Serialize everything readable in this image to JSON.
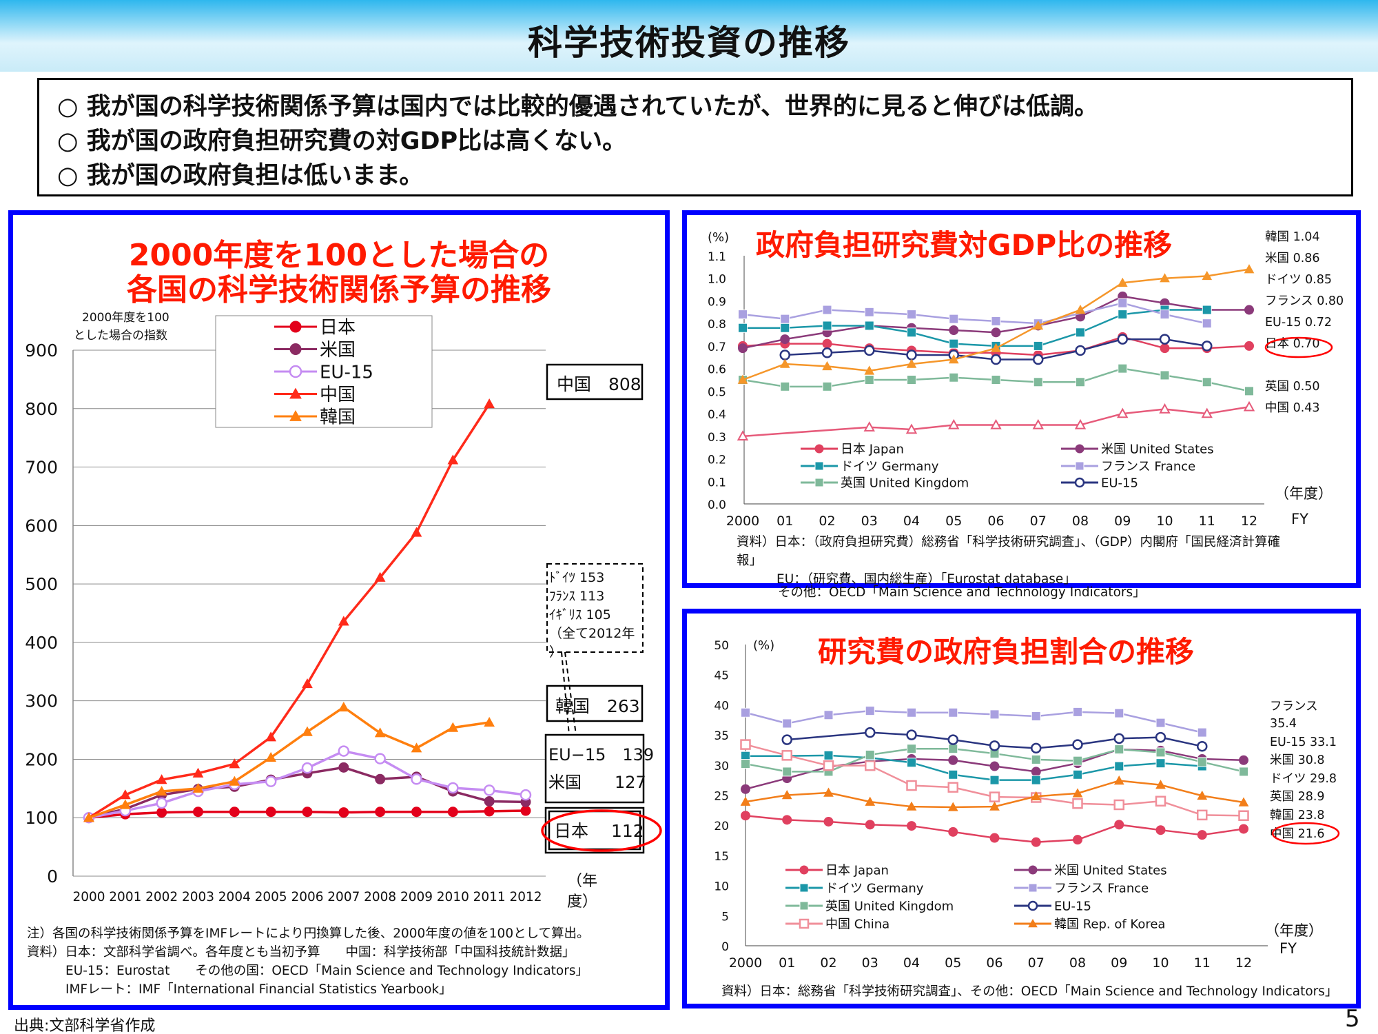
{
  "page_title": "科学技術投資の推移",
  "bullets": [
    "○ 我が国の科学技術関係予算は国内では比較的優遇されていたが、世界的に見ると伸びは低調。",
    "○ 我が国の政府負担研究費の対GDP比は高くない。",
    "○ 我が国の政府負担は低いまま。"
  ],
  "footer": "出典:文部科学省作成",
  "page_number": "5",
  "colors": {
    "band": "#2fb7ee",
    "panel_border": "#0000ff",
    "title_red": "#ff1a00",
    "highlight": "#ff0000"
  },
  "left": {
    "title1": "2000年度を100とした場合の",
    "title2": "各国の科学技術関係予算の推移",
    "ylabel1": "2000年度を100",
    "ylabel2": "とした場合の指数",
    "xunit1": "（年",
    "xunit2": "度）",
    "callouts": {
      "china": "中国　808",
      "korea": "韓国　263",
      "eu15": "EU−15　139",
      "us": "米国　　127",
      "japan": "日本　 112"
    },
    "dashed_box": [
      "ﾄﾞｲﾂ 153",
      "ﾌﾗﾝｽ 113",
      "ｲｷﾞﾘｽ 105",
      "（全て2012年",
      "）"
    ],
    "notes": [
      "注）各国の科学技術関係予算をIMFレートにより円換算した後、2000年度の値を100として算出。",
      "資料）日本：文部科学省調べ。各年度とも当初予算　　中国：科学技術部「中国科技統計数据」",
      "EU-15：Eurostat　　その他の国：OECD「Main Science and Technology Indicators」",
      "IMFレート：IMF「International Financial Statistics Yearbook」"
    ]
  },
  "middle": {
    "title": "政府負担研究費対GDP比の推移",
    "yunit": "(%)",
    "xunit": "（年度）",
    "fy": "FY",
    "right_labels": [
      "韓国 1.04",
      "米国 0.86",
      "ドイツ 0.85",
      "フランス 0.80",
      "EU-15 0.72",
      "日本 0.70",
      "英国 0.50",
      "中国 0.43"
    ],
    "notes": [
      "資料）日本：（政府負担研究費）総務省「科学技術研究調査」、（GDP）内閣府「国民経済計算確",
      "報」",
      "EU：（研究費、国内総生産）「Eurostat database」",
      "その他：OECD「Main Science and Technology Indicators」"
    ]
  },
  "bottom": {
    "title": "研究費の政府負担割合の推移",
    "yunit": "(%)",
    "xunit": "（年度）",
    "fy": "FY",
    "right_labels": [
      "フランス",
      "35.4",
      "EU-15 33.1",
      "米国 30.8",
      "ドイツ 29.8",
      "英国 28.9",
      "韓国 23.8",
      "中国 21.6"
    ],
    "note": "資料）日本：総務省「科学技術研究調査」、その他：OECD「Main Science and Technology Indicators」"
  },
  "chart_data": [
    {
      "type": "line",
      "title": "2000年度を100とした場合の各国の科学技術関係予算の推移",
      "ylabel": "2000年度を100とした場合の指数",
      "xlabel": "（年度）",
      "ylim": [
        0,
        900
      ],
      "yticks": [
        0,
        100,
        200,
        300,
        400,
        500,
        600,
        700,
        800,
        900
      ],
      "x": [
        "2000",
        "2001",
        "2002",
        "2003",
        "2004",
        "2005",
        "2006",
        "2007",
        "2008",
        "2009",
        "2010",
        "2011",
        "2012"
      ],
      "legend": "top-center",
      "series": [
        {
          "name": "日本",
          "color": "#e3001b",
          "marker": "circle",
          "values": [
            100,
            106,
            109,
            110,
            110,
            110,
            110,
            109,
            110,
            110,
            110,
            111,
            112
          ]
        },
        {
          "name": "米国",
          "color": "#8b2a62",
          "marker": "circle",
          "values": [
            100,
            115,
            139,
            149,
            153,
            165,
            176,
            186,
            166,
            170,
            145,
            128,
            127
          ]
        },
        {
          "name": "EU-15",
          "color": "#c58cf2",
          "marker": "circle-open",
          "values": [
            100,
            112,
            125,
            145,
            157,
            162,
            185,
            214,
            201,
            166,
            151,
            147,
            139
          ]
        },
        {
          "name": "中国",
          "color": "#ff2a1a",
          "marker": "triangle",
          "values": [
            100,
            139,
            165,
            176,
            192,
            238,
            329,
            436,
            511,
            588,
            712,
            808,
            null
          ]
        },
        {
          "name": "韓国",
          "color": "#ff7f0e",
          "marker": "triangle",
          "values": [
            100,
            122,
            145,
            150,
            162,
            203,
            247,
            289,
            245,
            219,
            254,
            263,
            null
          ]
        }
      ]
    },
    {
      "type": "line",
      "title": "政府負担研究費対GDP比の推移",
      "ylabel": "(%)",
      "xlabel": "（年度）",
      "ylim": [
        0,
        1.1
      ],
      "yticks": [
        0.0,
        0.1,
        0.2,
        0.3,
        0.4,
        0.5,
        0.6,
        0.7,
        0.8,
        0.9,
        1.0,
        1.1
      ],
      "x": [
        "2000",
        "01",
        "02",
        "03",
        "04",
        "05",
        "06",
        "07",
        "08",
        "09",
        "10",
        "11",
        "12"
      ],
      "legend": "bottom-inside",
      "series": [
        {
          "name": "日本 Japan",
          "color": "#e0405f",
          "marker": "circle",
          "values": [
            0.7,
            0.71,
            0.71,
            0.69,
            0.68,
            0.67,
            0.67,
            0.66,
            0.68,
            0.74,
            0.69,
            0.69,
            0.7
          ]
        },
        {
          "name": "米国 United States",
          "color": "#8b3a7a",
          "marker": "circle",
          "values": [
            0.69,
            0.73,
            0.76,
            0.79,
            0.78,
            0.77,
            0.76,
            0.79,
            0.83,
            0.92,
            0.89,
            0.86,
            0.86
          ]
        },
        {
          "name": "ドイツ Germany",
          "color": "#1b97a8",
          "marker": "square",
          "values": [
            0.78,
            0.78,
            0.79,
            0.79,
            0.76,
            0.71,
            0.7,
            0.7,
            0.76,
            0.84,
            0.86,
            0.86,
            null
          ]
        },
        {
          "name": "フランス France",
          "color": "#a9a0e0",
          "marker": "square",
          "values": [
            0.84,
            0.82,
            0.86,
            0.85,
            0.84,
            0.82,
            0.81,
            0.8,
            null,
            0.89,
            0.84,
            0.8,
            null
          ]
        },
        {
          "name": "英国 United Kingdom",
          "color": "#7fb99a",
          "marker": "square",
          "values": [
            0.55,
            0.52,
            0.52,
            0.55,
            0.55,
            0.56,
            0.55,
            0.54,
            0.54,
            0.6,
            0.57,
            0.54,
            0.5
          ]
        },
        {
          "name": "EU-15",
          "color": "#2a3580",
          "marker": "circle-open",
          "values": [
            null,
            0.66,
            0.67,
            0.68,
            0.66,
            0.66,
            0.64,
            0.64,
            0.68,
            0.73,
            0.73,
            0.7,
            null
          ]
        },
        {
          "name": "韓国",
          "color": "#f5962a",
          "marker": "triangle",
          "values": [
            0.55,
            0.62,
            0.61,
            0.59,
            0.62,
            0.64,
            0.69,
            0.79,
            0.86,
            0.98,
            1.0,
            1.01,
            1.04
          ]
        },
        {
          "name": "中国",
          "color": "#e65a7a",
          "marker": "triangle-open",
          "values": [
            0.3,
            null,
            null,
            0.34,
            0.33,
            0.35,
            0.35,
            0.35,
            0.35,
            0.4,
            0.42,
            0.4,
            0.43
          ]
        }
      ]
    },
    {
      "type": "line",
      "title": "研究費の政府負担割合の推移",
      "ylabel": "(%)",
      "xlabel": "（年度）",
      "ylim": [
        0,
        50
      ],
      "yticks": [
        0,
        5,
        10,
        15,
        20,
        25,
        30,
        35,
        40,
        45,
        50
      ],
      "x": [
        "2000",
        "01",
        "02",
        "03",
        "04",
        "05",
        "06",
        "07",
        "08",
        "09",
        "10",
        "11",
        "12"
      ],
      "legend": "bottom-inside",
      "series": [
        {
          "name": "日本 Japan",
          "color": "#e0405f",
          "marker": "circle",
          "values": [
            21.6,
            20.9,
            20.6,
            20.1,
            19.9,
            18.9,
            17.9,
            17.2,
            17.6,
            20.1,
            19.2,
            18.4,
            19.4
          ]
        },
        {
          "name": "米国 United States",
          "color": "#8b3a7a",
          "marker": "circle",
          "values": [
            26.0,
            27.8,
            29.7,
            30.6,
            31.0,
            30.8,
            29.8,
            28.9,
            30.3,
            32.6,
            32.4,
            31.0,
            30.8
          ]
        },
        {
          "name": "ドイツ Germany",
          "color": "#1b97a8",
          "marker": "square",
          "values": [
            31.5,
            31.5,
            31.6,
            31.2,
            30.4,
            28.4,
            27.5,
            27.5,
            28.4,
            29.8,
            30.3,
            29.8,
            null
          ]
        },
        {
          "name": "フランス France",
          "color": "#a9a0e0",
          "marker": "square",
          "values": [
            38.7,
            36.9,
            38.3,
            39.0,
            38.7,
            38.7,
            38.4,
            38.1,
            38.8,
            38.6,
            37.0,
            35.4,
            null
          ]
        },
        {
          "name": "英国 United Kingdom",
          "color": "#7fb99a",
          "marker": "square",
          "values": [
            30.2,
            28.9,
            28.9,
            31.7,
            32.7,
            32.7,
            31.9,
            30.9,
            30.7,
            32.6,
            32.1,
            30.5,
            28.9
          ]
        },
        {
          "name": "EU-15",
          "color": "#2a3580",
          "marker": "circle-open",
          "values": [
            null,
            34.2,
            null,
            35.4,
            35.0,
            34.2,
            33.2,
            32.8,
            33.4,
            34.4,
            34.6,
            33.1,
            null
          ]
        },
        {
          "name": "中国 China",
          "color": "#f08f9a",
          "marker": "square-open",
          "values": [
            33.4,
            31.6,
            29.9,
            29.9,
            26.6,
            26.3,
            24.7,
            24.6,
            23.6,
            23.4,
            24.0,
            21.7,
            21.6
          ]
        },
        {
          "name": "韓国 Rep. of Korea",
          "color": "#f27e1a",
          "marker": "triangle",
          "values": [
            23.9,
            25.0,
            25.4,
            23.9,
            23.1,
            23.0,
            23.1,
            24.8,
            25.3,
            27.4,
            26.7,
            24.9,
            23.8
          ]
        }
      ]
    }
  ]
}
